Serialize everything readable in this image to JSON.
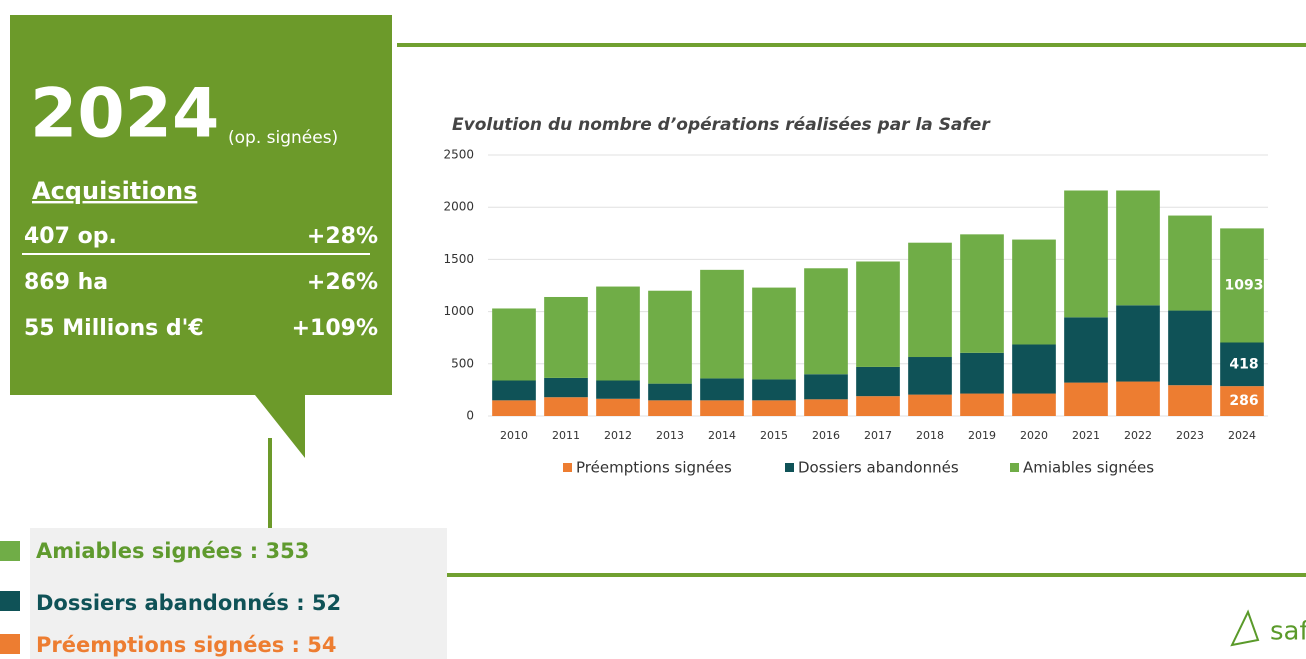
{
  "panel": {
    "year": "2024",
    "year_note": "(op. signées)",
    "heading": "Acquisitions",
    "rows": [
      [
        "407 op.",
        "+28%"
      ],
      [
        "869 ha",
        "+26%"
      ],
      [
        "55 Millions d'€",
        "+109%"
      ]
    ],
    "breakdown": [
      "Amiables signées : 353",
      "Dossiers abandonnés : 52",
      "Préemptions signées : 54"
    ],
    "logo": "saf"
  },
  "chart_data": {
    "type": "bar",
    "stacked": true,
    "title": "Evolution du nombre d’opérations réalisées par la Safer",
    "categories": [
      "2010",
      "2011",
      "2012",
      "2013",
      "2014",
      "2015",
      "2016",
      "2017",
      "2018",
      "2019",
      "2020",
      "2021",
      "2022",
      "2023",
      "2024"
    ],
    "series": [
      {
        "name": "Préemptions signées",
        "color": "#ed7d31",
        "values": [
          150,
          180,
          165,
          150,
          150,
          150,
          160,
          190,
          205,
          215,
          215,
          320,
          330,
          295,
          286
        ]
      },
      {
        "name": "Dossiers abandonnés",
        "color": "#0f5257",
        "values": [
          190,
          185,
          175,
          160,
          210,
          200,
          240,
          280,
          360,
          390,
          470,
          625,
          730,
          715,
          418
        ]
      },
      {
        "name": "Amiables signées",
        "color": "#70ad47",
        "values": [
          690,
          775,
          900,
          890,
          1040,
          880,
          1015,
          1010,
          1095,
          1135,
          1005,
          1215,
          1100,
          910,
          1093
        ]
      }
    ],
    "ylim": [
      0,
      2500
    ],
    "yticks": [
      0,
      500,
      1000,
      1500,
      2000,
      2500
    ],
    "grid": true,
    "legend": "bottom"
  }
}
